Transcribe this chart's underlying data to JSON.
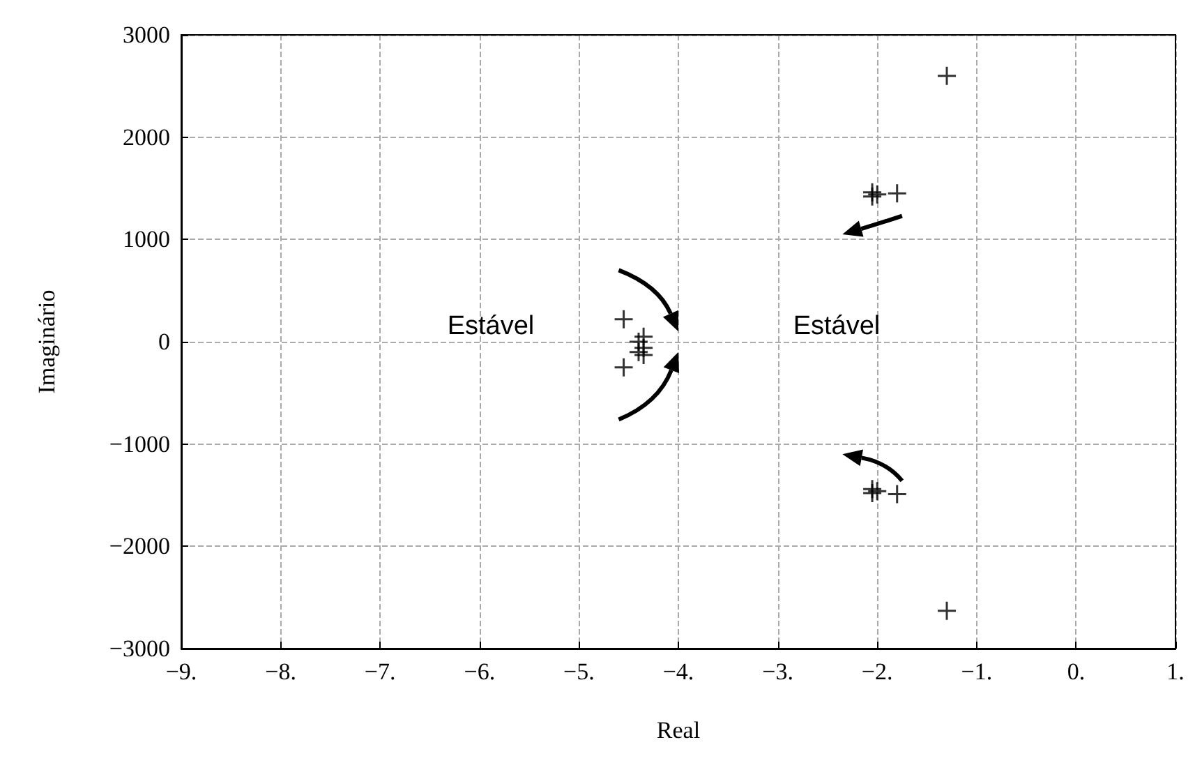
{
  "chart_data": {
    "type": "scatter",
    "xlabel": "Real",
    "ylabel": "Imaginário",
    "x": [
      -1.3,
      -1.8,
      -2.05,
      -2.0,
      -2.05,
      -1.3,
      -1.8,
      -2.05,
      -2.0,
      -2.05,
      -4.55,
      -4.55,
      -4.35,
      -4.4,
      -4.35,
      -4.4,
      -4.35
    ],
    "values": [
      2600,
      1450,
      1420,
      1440,
      1460,
      -2630,
      -1490,
      -1440,
      -1460,
      -1480,
      220,
      -250,
      50,
      0,
      -60,
      -100,
      -130
    ],
    "color": "#000000",
    "marker": "cross",
    "xlim": [
      -9,
      1
    ],
    "xticks": [
      {
        "value": -9,
        "label": "−9."
      },
      {
        "value": -8,
        "label": "−8."
      },
      {
        "value": -7,
        "label": "−7."
      },
      {
        "value": -6,
        "label": "−6."
      },
      {
        "value": -5,
        "label": "−5."
      },
      {
        "value": -4,
        "label": "−4."
      },
      {
        "value": -3,
        "label": "−3."
      },
      {
        "value": -2,
        "label": "−2."
      },
      {
        "value": -1,
        "label": "−1."
      },
      {
        "value": 0,
        "label": "0."
      },
      {
        "value": 1,
        "label": "1."
      }
    ],
    "ylim": [
      -3000,
      3000
    ],
    "yticks": [
      {
        "value": -3000,
        "label": "−3000"
      },
      {
        "value": -2000,
        "label": "−2000"
      },
      {
        "value": -1000,
        "label": "−1000"
      },
      0,
      1000,
      2000,
      3000
    ],
    "grid": true,
    "annotations": [
      "Estável",
      "Estável"
    ]
  }
}
